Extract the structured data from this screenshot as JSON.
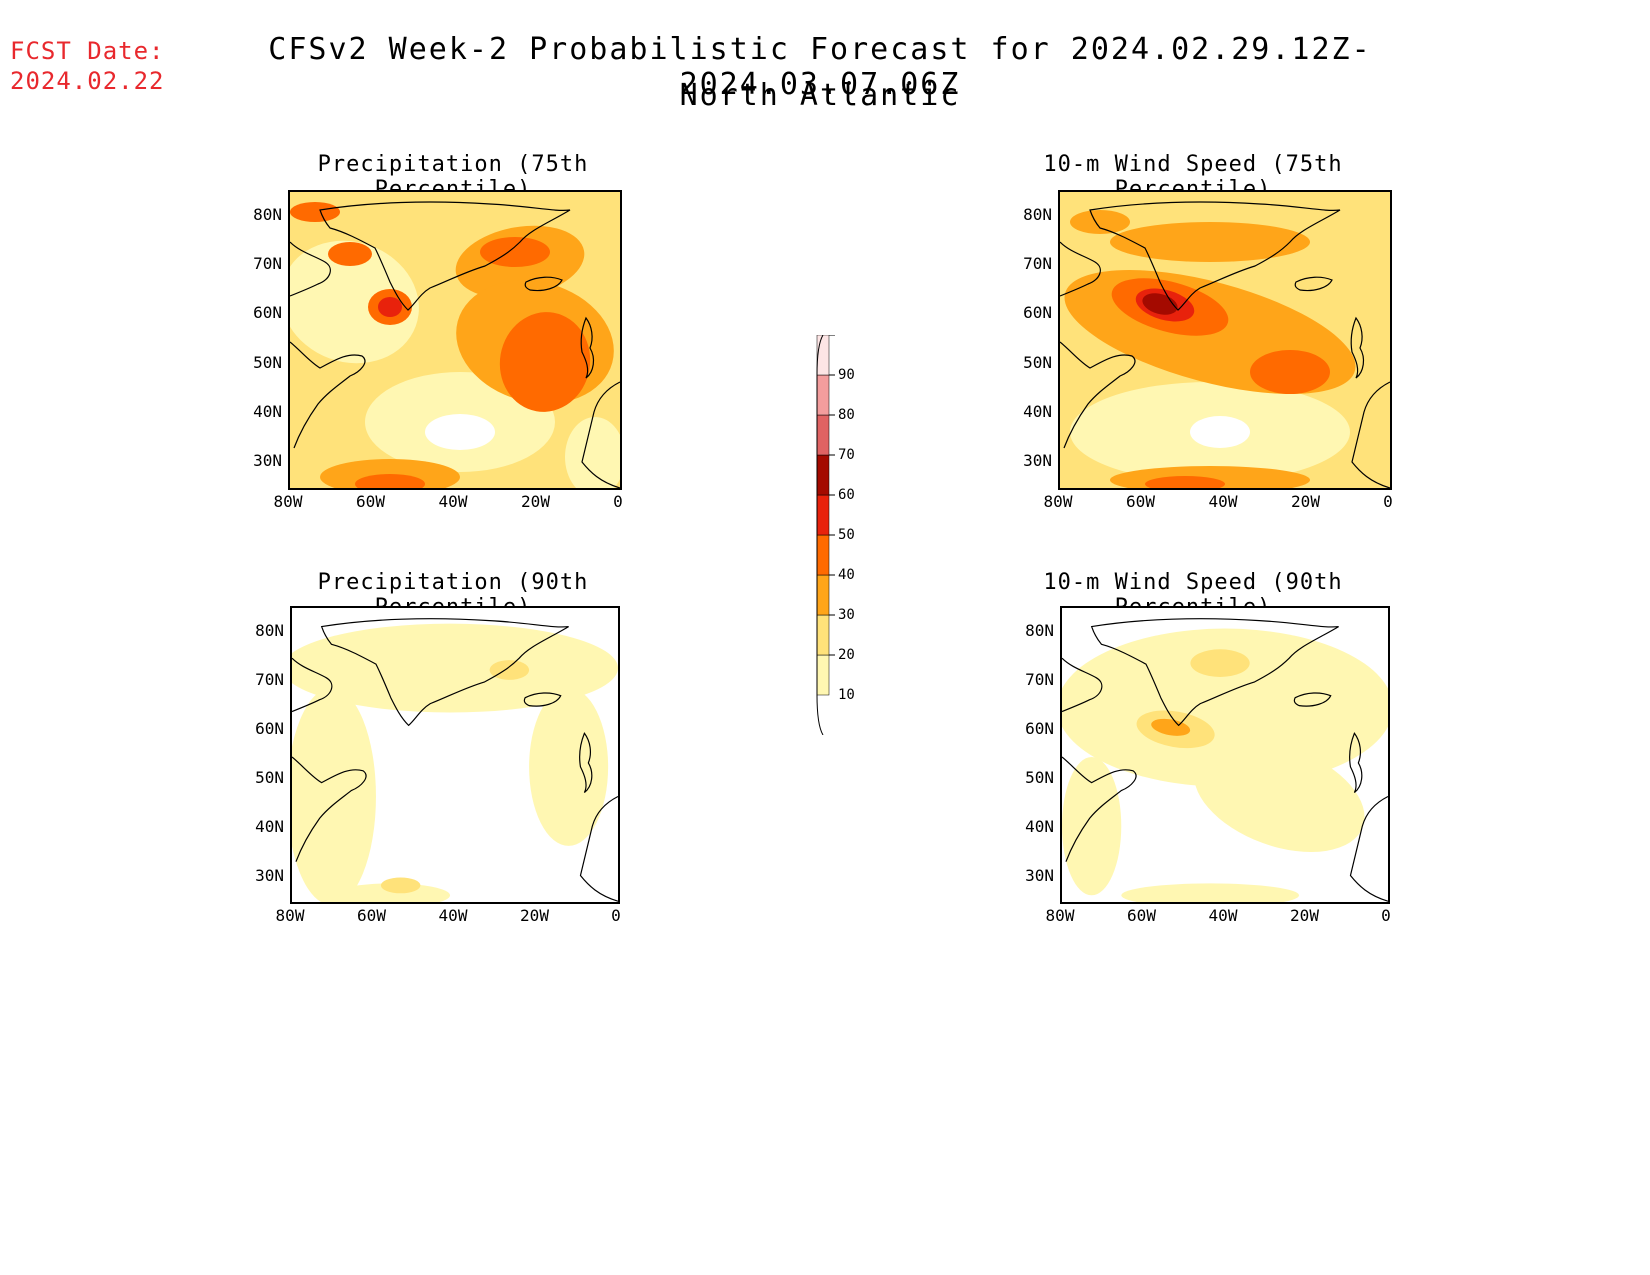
{
  "header": {
    "fcst_label": "FCST Date:",
    "fcst_date": "2024.02.22",
    "title": "CFSv2 Week-2 Probabilistic Forecast for 2024.02.29.12Z-2024.03.07.06Z",
    "subtitle": "North Atlantic"
  },
  "panels": [
    {
      "title": "Precipitation (75th Percentile)",
      "variable": "precipitation",
      "percentile": 75
    },
    {
      "title": "10-m Wind Speed (75th Percentile)",
      "variable": "wind",
      "percentile": 75
    },
    {
      "title": "Precipitation (90th Percentile)",
      "variable": "precipitation",
      "percentile": 90
    },
    {
      "title": "10-m Wind Speed (90th Percentile)",
      "variable": "wind",
      "percentile": 90
    }
  ],
  "axes": {
    "lat_ticks": [
      "80N",
      "70N",
      "60N",
      "50N",
      "40N",
      "30N"
    ],
    "lon_ticks": [
      "80W",
      "60W",
      "40W",
      "20W",
      "0"
    ]
  },
  "colorbar": {
    "levels": [
      "10",
      "20",
      "30",
      "40",
      "50",
      "60",
      "70",
      "80",
      "90"
    ],
    "colors": [
      "#fff7b2",
      "#ffe27a",
      "#ffa519",
      "#ff6a00",
      "#e8220c",
      "#a40a00",
      "#e06363",
      "#f39d9d",
      "#fde5e5"
    ]
  }
}
